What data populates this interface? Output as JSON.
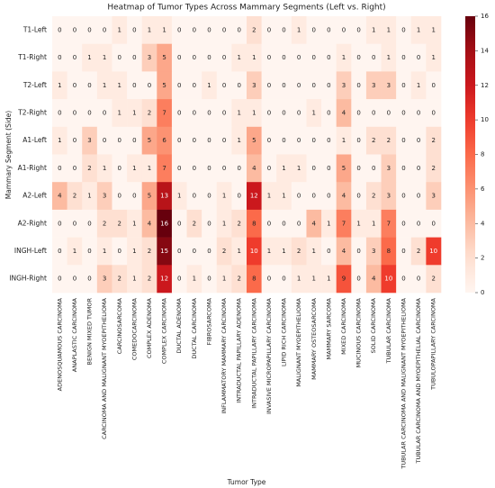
{
  "chart_data": {
    "type": "heatmap",
    "title": "Heatmap of Tumor Types Across Mammary Segments (Left vs. Right)",
    "x_label": "Tumor Type",
    "y_label": "Mammary Segment (Side)",
    "categories": [
      "ADENOSQUAMOUS CARCINOMA",
      "ANAPLASTIC CARCINOMA",
      "BENIGN MIXED TUMOR",
      "CARCINOMA AND MALIGNANT MYOEPITHELIOMA",
      "CARCINOSARCOMA",
      "COMEDOCARCINOMA",
      "COMPLEX ADENOMA",
      "COMPLEX CARCINOMA",
      "DUCTAL ADENOMA",
      "DUCTAL CARCINOMA",
      "FIBROSARCOMA",
      "INFLAMMATORY MAMMARY CARCINOMA",
      "INTRADUCTAL PAPILLARY ADENOMA",
      "INTRADUCTAL PAPILLARY CARCINOMA",
      "INVASIVE MICROPAPILLARY CARCINOMA",
      "LIPID RICH CARCINOMA",
      "MALIGNANT MYOEPITHELIOMA",
      "MAMMARY OSTEOSARCOMA",
      "MAMMARY SARCOMA",
      "MIXED CARCINOMA",
      "MUCINOUS CARCINOMA",
      "SOLID CARCINOMA",
      "TUBULAR CARCINOMA",
      "TUBULAR CARCINOMA AND MALIGNANT MYOEPITHELIOMA",
      "TUBULAR CARCINOMA AND MYOEPITHELIAL CARCINOMA",
      "TUBULOPAPILLARY CARCINOMA"
    ],
    "rows": [
      "T1-Left",
      "T1-Right",
      "T2-Left",
      "T2-Right",
      "A1-Left",
      "A1-Right",
      "A2-Left",
      "A2-Right",
      "INGH-Left",
      "INGH-Right"
    ],
    "values": [
      [
        0,
        0,
        0,
        0,
        1,
        0,
        1,
        1,
        0,
        0,
        0,
        0,
        0,
        2,
        0,
        0,
        1,
        0,
        0,
        0,
        0,
        1,
        1,
        0,
        1,
        1
      ],
      [
        0,
        0,
        1,
        1,
        0,
        0,
        3,
        5,
        0,
        0,
        0,
        0,
        1,
        1,
        0,
        0,
        0,
        0,
        0,
        1,
        0,
        0,
        1,
        0,
        0,
        1
      ],
      [
        1,
        0,
        0,
        1,
        1,
        0,
        0,
        5,
        0,
        0,
        1,
        0,
        0,
        3,
        0,
        0,
        0,
        0,
        0,
        3,
        0,
        3,
        3,
        0,
        1,
        0
      ],
      [
        0,
        0,
        0,
        0,
        1,
        1,
        2,
        7,
        0,
        0,
        0,
        0,
        1,
        1,
        0,
        0,
        0,
        1,
        0,
        4,
        0,
        0,
        0,
        0,
        0,
        0
      ],
      [
        1,
        0,
        3,
        0,
        0,
        0,
        5,
        6,
        0,
        0,
        0,
        0,
        1,
        5,
        0,
        0,
        0,
        0,
        0,
        1,
        0,
        2,
        2,
        0,
        0,
        2
      ],
      [
        0,
        0,
        2,
        1,
        0,
        1,
        1,
        7,
        0,
        0,
        0,
        0,
        0,
        4,
        0,
        1,
        1,
        0,
        0,
        5,
        0,
        0,
        3,
        0,
        0,
        2
      ],
      [
        4,
        2,
        1,
        3,
        0,
        0,
        5,
        13,
        1,
        0,
        0,
        1,
        0,
        12,
        1,
        1,
        0,
        0,
        0,
        4,
        0,
        2,
        3,
        0,
        0,
        3
      ],
      [
        0,
        0,
        0,
        2,
        2,
        1,
        4,
        16,
        0,
        2,
        0,
        1,
        2,
        8,
        0,
        0,
        0,
        4,
        1,
        7,
        1,
        1,
        7,
        0,
        0,
        0
      ],
      [
        0,
        1,
        0,
        1,
        0,
        1,
        2,
        15,
        0,
        0,
        0,
        2,
        1,
        10,
        1,
        1,
        2,
        1,
        0,
        4,
        0,
        3,
        8,
        0,
        2,
        10
      ],
      [
        0,
        0,
        0,
        3,
        2,
        1,
        2,
        12,
        0,
        1,
        0,
        1,
        2,
        8,
        0,
        0,
        1,
        1,
        1,
        9,
        0,
        4,
        10,
        0,
        0,
        2
      ]
    ],
    "colormap": "Reds",
    "zlim": [
      0,
      16
    ],
    "zticks": [
      0,
      2,
      4,
      6,
      8,
      10,
      12,
      14,
      16
    ]
  }
}
